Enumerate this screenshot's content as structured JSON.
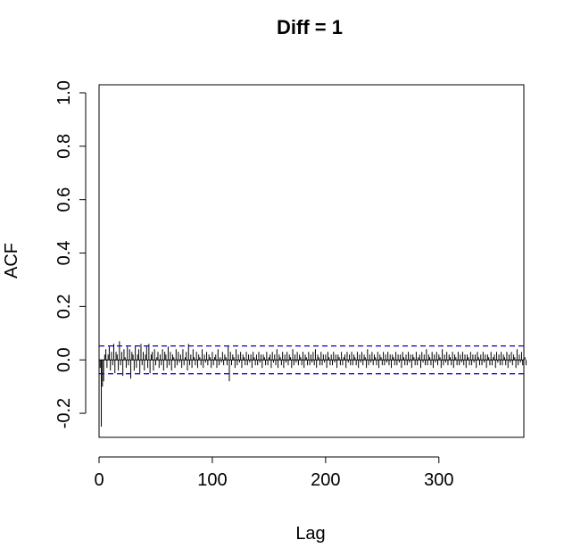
{
  "chart_data": {
    "type": "bar",
    "title": "Diff = 1",
    "xlabel": "Lag",
    "ylabel": "ACF",
    "xlim": [
      0,
      375
    ],
    "ylim": [
      -0.29,
      1.03
    ],
    "x_ticks": [
      0,
      100,
      200,
      300
    ],
    "x_tick_labels": [
      "0",
      "100",
      "200",
      "300"
    ],
    "y_ticks": [
      -0.2,
      0.0,
      0.2,
      0.4,
      0.6,
      0.8,
      1.0
    ],
    "y_tick_labels": [
      "-0.2",
      "0.0",
      "0.2",
      "0.4",
      "0.6",
      "0.8",
      "1.0"
    ],
    "confidence_bound": 0.052,
    "zero_line": 0,
    "grid": false,
    "colors": {
      "bars": "#000000",
      "confidence": "#0000cc",
      "axes": "#000000"
    },
    "lags_start": 0,
    "values": [
      1.0,
      -0.03,
      -0.25,
      -0.1,
      -0.08,
      0.02,
      0.04,
      -0.03,
      0.02,
      0.05,
      -0.04,
      0.03,
      -0.02,
      0.06,
      -0.05,
      0.03,
      0.02,
      -0.04,
      0.07,
      -0.02,
      0.03,
      -0.06,
      0.04,
      0.01,
      -0.03,
      0.05,
      -0.02,
      0.04,
      -0.07,
      0.03,
      0.02,
      -0.04,
      0.05,
      -0.03,
      0.02,
      0.04,
      -0.05,
      0.06,
      -0.02,
      0.03,
      -0.04,
      0.02,
      0.05,
      -0.03,
      0.06,
      -0.05,
      0.02,
      0.03,
      -0.04,
      0.04,
      -0.02,
      0.01,
      0.03,
      -0.03,
      0.02,
      -0.02,
      0.04,
      -0.04,
      0.03,
      0.02,
      -0.03,
      0.05,
      -0.02,
      0.03,
      -0.04,
      0.02,
      0.01,
      -0.03,
      0.04,
      -0.02,
      0.03,
      -0.01,
      0.02,
      -0.03,
      0.04,
      -0.02,
      0.01,
      0.03,
      -0.04,
      0.06,
      -0.02,
      0.02,
      -0.03,
      0.04,
      0.01,
      -0.02,
      0.03,
      -0.03,
      0.02,
      0.01,
      -0.02,
      0.04,
      -0.03,
      0.02,
      -0.01,
      0.03,
      -0.02,
      0.02,
      0.01,
      -0.03,
      0.03,
      -0.02,
      0.01,
      0.02,
      -0.03,
      0.04,
      -0.02,
      0.01,
      -0.01,
      0.03,
      -0.02,
      0.02,
      0.01,
      -0.02,
      0.05,
      -0.08,
      0.03,
      -0.02,
      0.02,
      0.01,
      -0.03,
      0.04,
      -0.02,
      0.02,
      -0.01,
      0.03,
      -0.03,
      0.02,
      0.01,
      -0.02,
      0.03,
      -0.02,
      0.02,
      -0.01,
      0.02,
      -0.03,
      0.03,
      0.01,
      -0.02,
      0.02,
      -0.02,
      0.03,
      -0.01,
      0.02,
      -0.03,
      0.02,
      0.01,
      -0.02,
      0.03,
      -0.02,
      0.01,
      0.02,
      -0.03,
      0.03,
      -0.01,
      0.02,
      -0.02,
      0.04,
      -0.03,
      0.02,
      0.01,
      -0.02,
      0.03,
      -0.03,
      0.02,
      -0.01,
      0.03,
      -0.02,
      0.02,
      0.01,
      -0.03,
      0.04,
      -0.02,
      0.02,
      -0.01,
      0.03,
      -0.02,
      0.02,
      0.01,
      -0.02,
      0.03,
      -0.03,
      0.02,
      0.01,
      -0.02,
      0.03,
      -0.02,
      0.02,
      -0.01,
      0.03,
      -0.02,
      0.04,
      -0.03,
      0.02,
      0.01,
      -0.02,
      0.03,
      -0.02,
      0.02,
      -0.01,
      0.02,
      -0.03,
      0.03,
      0.01,
      -0.02,
      0.02,
      -0.02,
      0.03,
      -0.01,
      0.02,
      -0.03,
      0.02,
      0.01,
      -0.02,
      0.03,
      -0.02,
      0.01,
      0.02,
      -0.03,
      0.03,
      -0.01,
      0.02,
      -0.02,
      0.03,
      -0.02,
      0.02,
      0.01,
      -0.02,
      0.03,
      -0.03,
      0.02,
      -0.01,
      0.03,
      -0.02,
      0.02,
      0.01,
      -0.03,
      0.04,
      -0.02,
      0.02,
      -0.01,
      0.03,
      -0.02,
      0.02,
      0.01,
      -0.02,
      0.03,
      -0.03,
      0.02,
      0.01,
      -0.02,
      0.03,
      -0.02,
      0.02,
      -0.01,
      0.03,
      -0.02,
      0.02,
      -0.03,
      0.02,
      0.01,
      -0.02,
      0.03,
      -0.02,
      0.02,
      -0.01,
      0.02,
      -0.03,
      0.03,
      0.01,
      -0.02,
      0.02,
      -0.02,
      0.03,
      -0.01,
      0.02,
      -0.03,
      0.02,
      0.01,
      -0.02,
      0.03,
      -0.02,
      0.01,
      0.02,
      -0.03,
      0.03,
      -0.01,
      0.02,
      -0.02,
      0.04,
      -0.02,
      0.02,
      0.01,
      -0.02,
      0.03,
      -0.03,
      0.02,
      -0.01,
      0.03,
      -0.02,
      0.02,
      0.01,
      -0.03,
      0.04,
      -0.02,
      0.02,
      -0.01,
      0.03,
      -0.02,
      0.02,
      0.01,
      -0.02,
      0.03,
      -0.03,
      0.02,
      0.01,
      -0.02,
      0.03,
      -0.02,
      0.02,
      -0.01,
      0.03,
      -0.02,
      0.02,
      -0.03,
      0.02,
      0.01,
      -0.02,
      0.03,
      -0.02,
      0.02,
      -0.01,
      0.02,
      -0.03,
      0.03,
      0.01,
      -0.02,
      0.02,
      -0.02,
      0.03,
      -0.01,
      0.02,
      -0.03,
      0.02,
      0.01,
      -0.02,
      0.03,
      -0.02,
      0.01,
      0.02,
      -0.03,
      0.03,
      -0.01,
      0.02,
      -0.02,
      0.03,
      -0.02,
      0.02,
      0.01,
      -0.02,
      0.03,
      -0.03,
      0.02,
      -0.01,
      0.03,
      -0.02,
      0.02,
      0.01,
      -0.03,
      0.04,
      -0.02,
      0.02,
      -0.01,
      0.03,
      -0.02,
      0.02,
      0.01,
      -0.02
    ]
  }
}
